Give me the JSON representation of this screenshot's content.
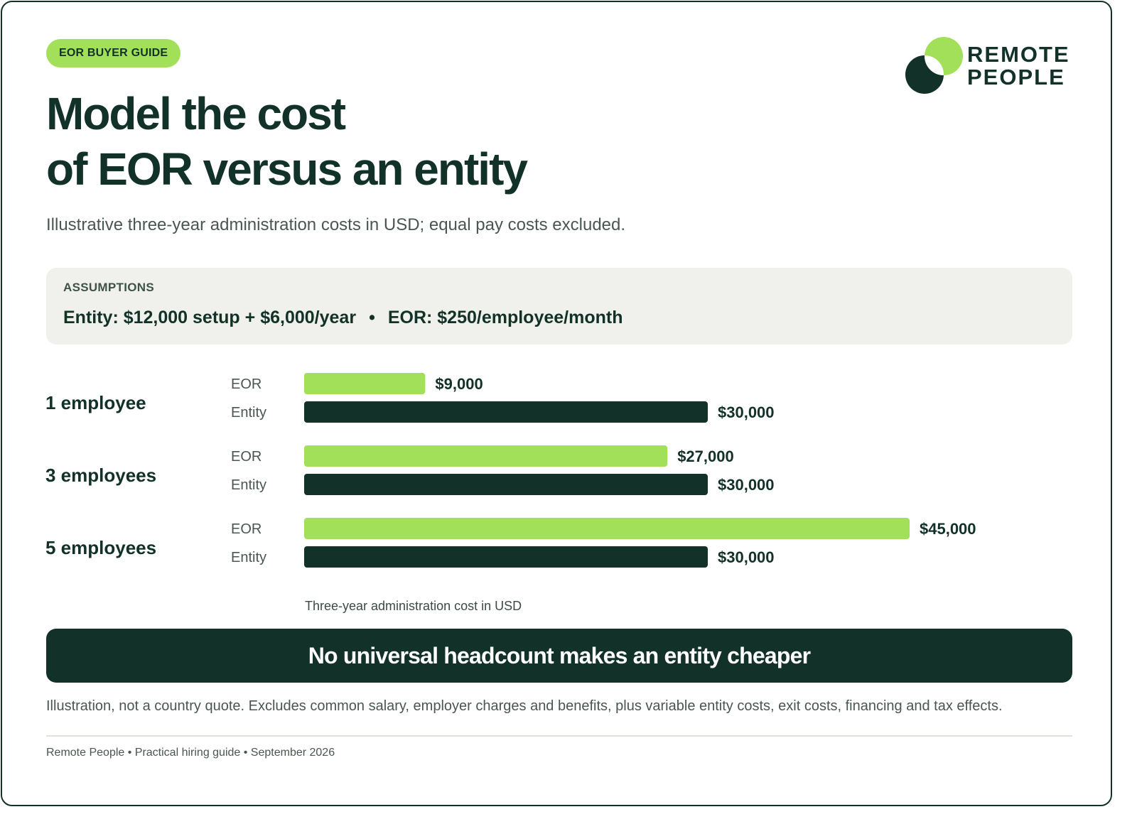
{
  "badge": "EOR BUYER GUIDE",
  "brand": {
    "line1": "REMOTE",
    "line2": "PEOPLE"
  },
  "title": {
    "line1": "Model the cost",
    "line2": "of EOR versus an entity"
  },
  "subtitle": "Illustrative three-year administration costs in USD; equal pay costs excluded.",
  "assumptions": {
    "label": "ASSUMPTIONS",
    "entity": "Entity: $12,000 setup + $6,000/year",
    "separator": "•",
    "eor": "EOR: $250/employee/month"
  },
  "colors": {
    "eor": "#a3e05a",
    "entity": "#123128",
    "ink": "#123128"
  },
  "chart_data": {
    "type": "bar",
    "orientation": "horizontal",
    "categories": [
      "1 employee",
      "3 employees",
      "5 employees"
    ],
    "series": [
      {
        "name": "EOR",
        "values": [
          9000,
          27000,
          45000
        ],
        "labels": [
          "$9,000",
          "$27,000",
          "$45,000"
        ]
      },
      {
        "name": "Entity",
        "values": [
          30000,
          30000,
          30000
        ],
        "labels": [
          "$30,000",
          "$30,000",
          "$30,000"
        ]
      }
    ],
    "xlabel": "Three-year administration cost in USD",
    "xlim": [
      0,
      45000
    ],
    "grid": false,
    "legend": "none"
  },
  "banner": "No universal headcount makes an entity cheaper",
  "disclaimer": "Illustration, not a country quote. Excludes common salary, employer charges and benefits, plus variable entity costs, exit costs, financing and tax effects.",
  "footer": "Remote People • Practical hiring guide • September 2026"
}
